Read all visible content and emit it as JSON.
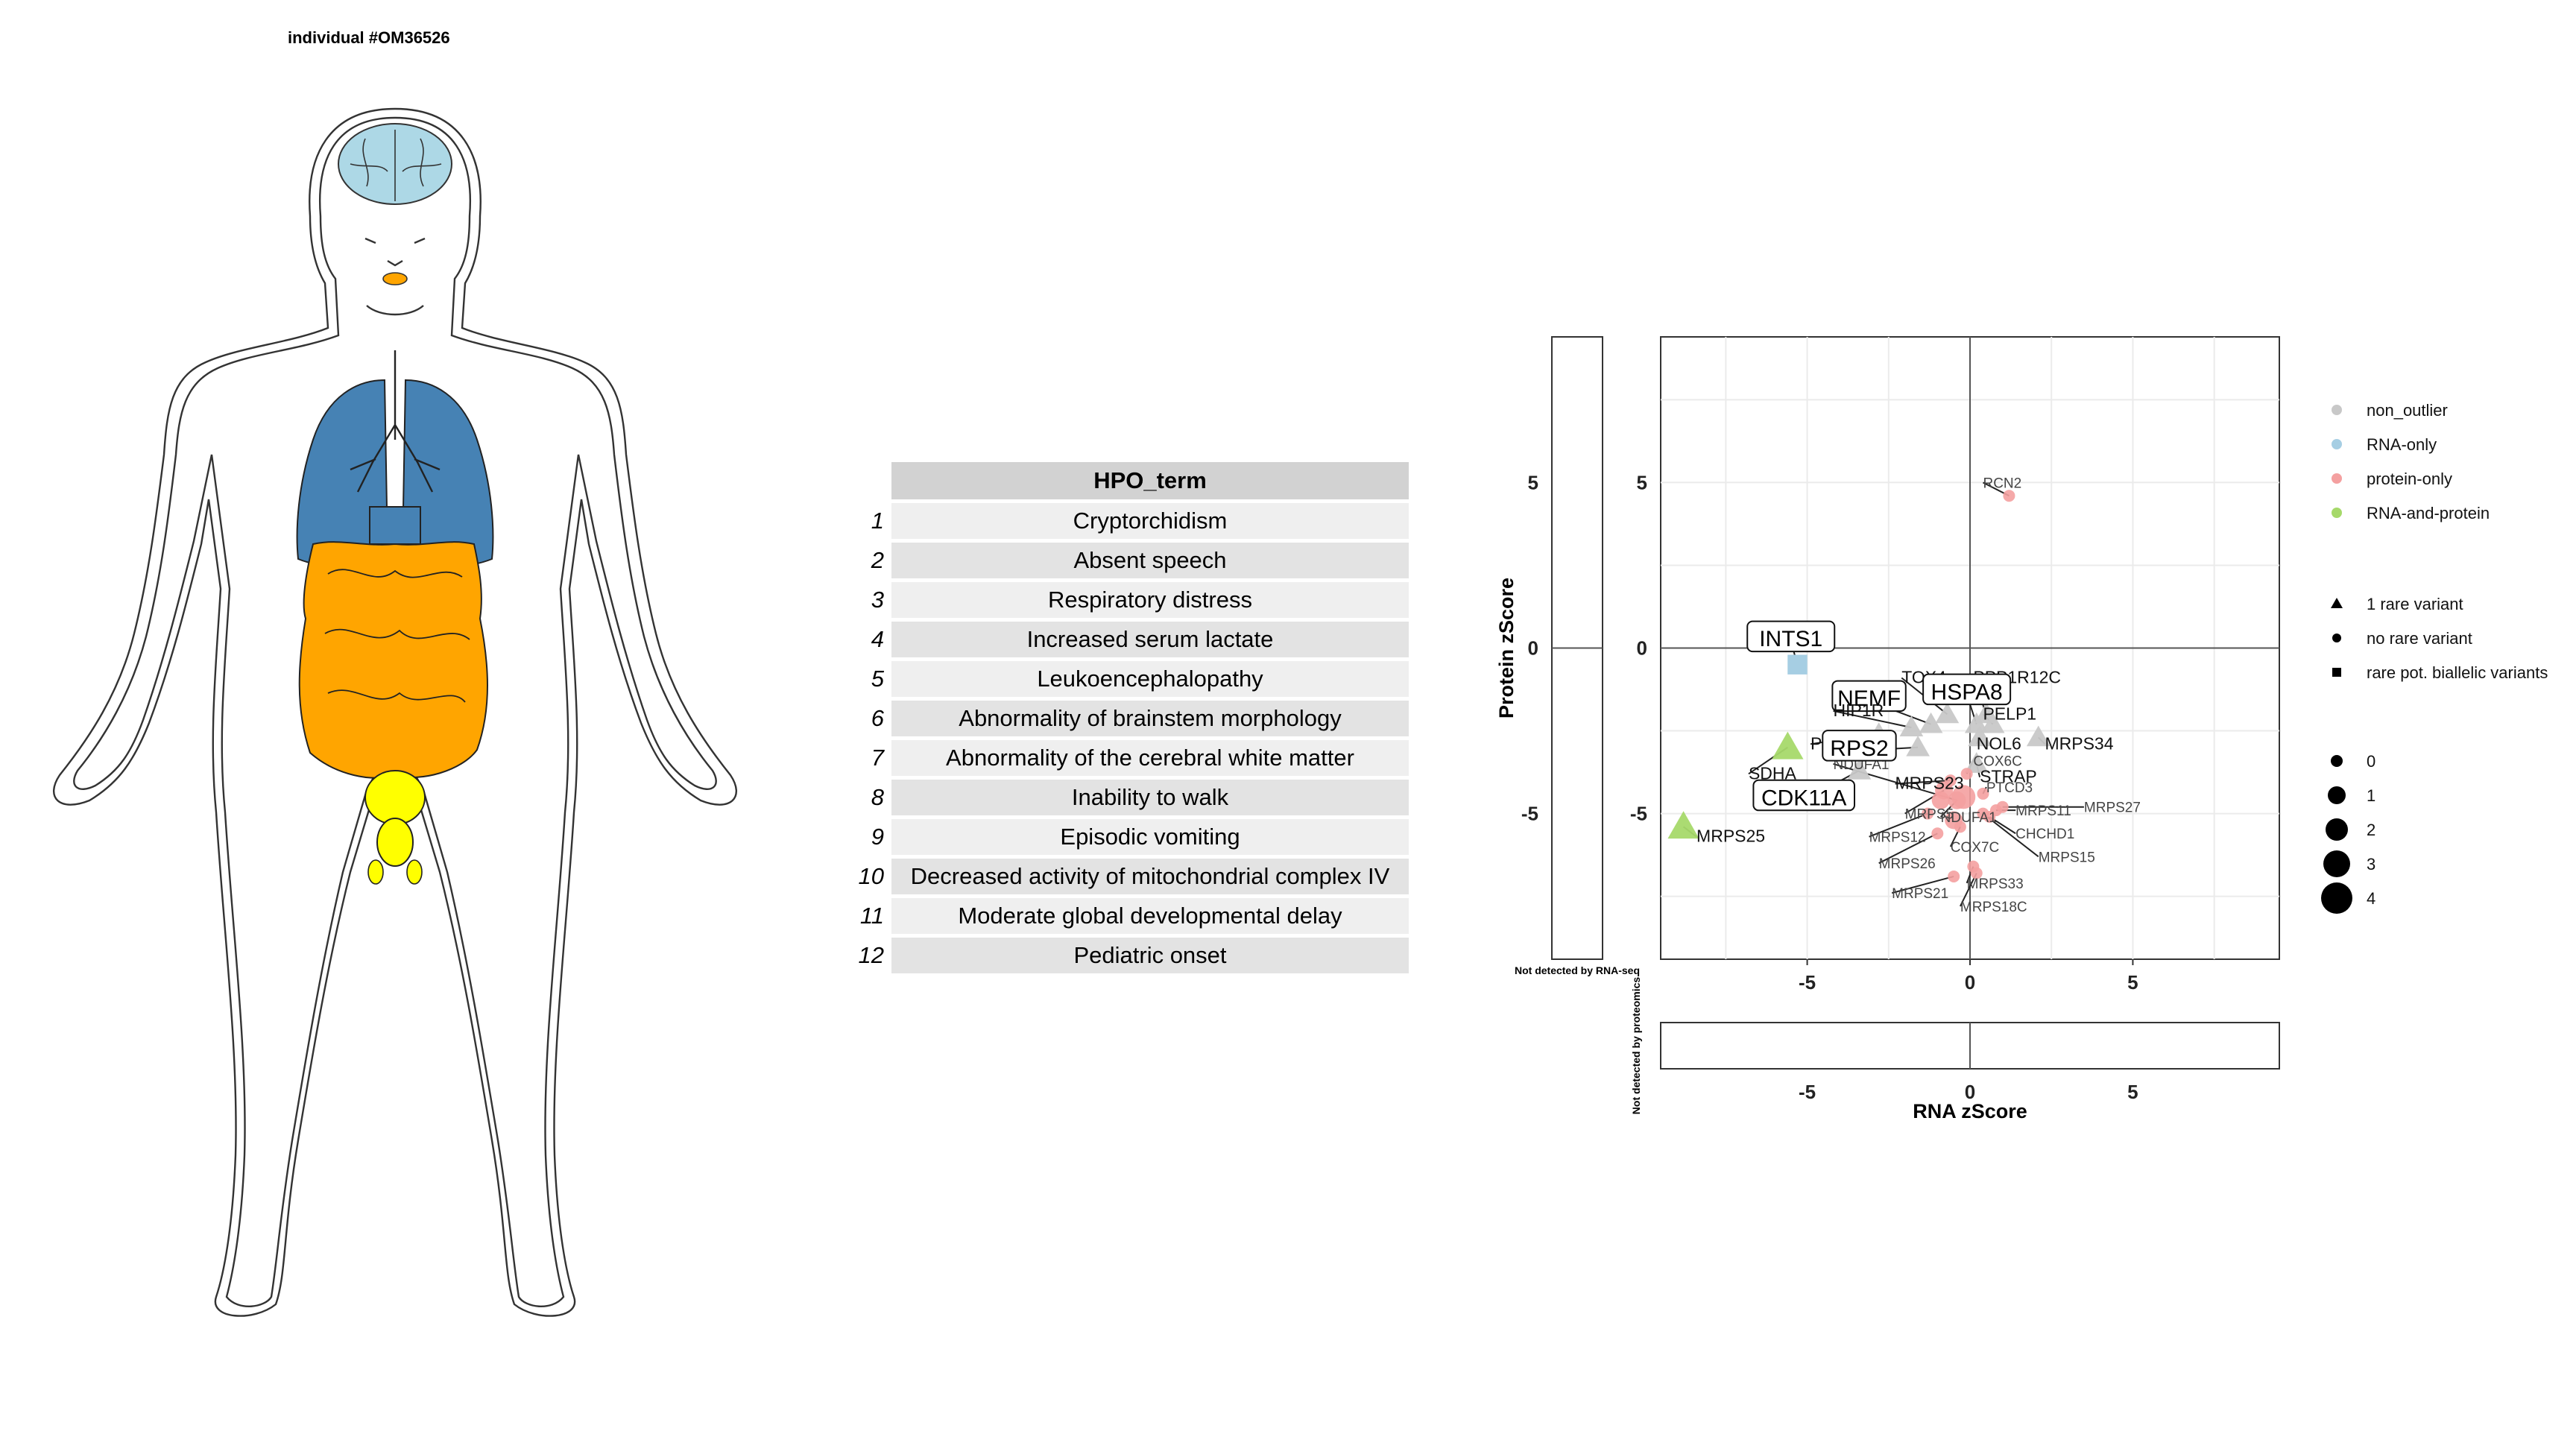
{
  "title": "individual #OM36526",
  "body": {
    "organs": [
      {
        "name": "brain",
        "color": "#add8e6"
      },
      {
        "name": "lungs",
        "color": "#4682b4"
      },
      {
        "name": "intestines",
        "color": "#ffa500"
      },
      {
        "name": "bladder",
        "color": "#ffff00"
      },
      {
        "name": "mouth",
        "color": "#ffa500"
      }
    ]
  },
  "hpo_table": {
    "header": "HPO_term",
    "rows": [
      {
        "idx": "1",
        "term": "Cryptorchidism"
      },
      {
        "idx": "2",
        "term": "Absent speech"
      },
      {
        "idx": "3",
        "term": "Respiratory distress"
      },
      {
        "idx": "4",
        "term": "Increased serum lactate"
      },
      {
        "idx": "5",
        "term": "Leukoencephalopathy"
      },
      {
        "idx": "6",
        "term": "Abnormality of brainstem morphology"
      },
      {
        "idx": "7",
        "term": "Abnormality of the cerebral white matter"
      },
      {
        "idx": "8",
        "term": "Inability to walk"
      },
      {
        "idx": "9",
        "term": "Episodic vomiting"
      },
      {
        "idx": "10",
        "term": "Decreased activity of mitochondrial complex IV"
      },
      {
        "idx": "11",
        "term": "Moderate global developmental delay"
      },
      {
        "idx": "12",
        "term": "Pediatric onset"
      }
    ]
  },
  "chart_data": {
    "type": "scatter",
    "title": "",
    "xlabel": "RNA zScore",
    "ylabel": "Protein zScore",
    "xlim": [
      -9.5,
      9.5
    ],
    "ylim": [
      -9.4,
      9.4
    ],
    "xticks": [
      -5,
      0,
      5
    ],
    "yticks": [
      5,
      0,
      -5
    ],
    "side_label_left": "Not detected by RNA-seq",
    "side_label_bottom": "Not detected by proteomics",
    "colors": {
      "non_outlier": "#c8c8c8",
      "RNA-only": "#a6cee3",
      "protein-only": "#f4a0a0",
      "RNA-and-protein": "#a6d96a"
    },
    "legend": {
      "placement": "right",
      "color_items": [
        "non_outlier",
        "RNA-only",
        "protein-only",
        "RNA-and-protein"
      ],
      "shape_items": [
        {
          "shape": "triangle",
          "label": "1 rare variant"
        },
        {
          "shape": "circle",
          "label": "no rare variant"
        },
        {
          "shape": "square",
          "label": "rare pot. biallelic variants"
        }
      ],
      "size_items": [
        "0",
        "1",
        "2",
        "3",
        "4"
      ]
    },
    "points": [
      {
        "gene": "RCN2",
        "x": 1.2,
        "y": 4.6,
        "cat": "protein-only",
        "shape": "circle",
        "size": 0
      },
      {
        "gene": "INTS1",
        "x": -5.3,
        "y": -0.5,
        "cat": "RNA-only",
        "shape": "square",
        "size": 1,
        "boxed": true
      },
      {
        "gene": "SDHA",
        "x": -5.6,
        "y": -3.0,
        "cat": "RNA-and-protein",
        "shape": "triangle",
        "size": 2
      },
      {
        "gene": "MRPS25",
        "x": -8.8,
        "y": -5.4,
        "cat": "RNA-and-protein",
        "shape": "triangle",
        "size": 2
      },
      {
        "gene": "TOX4",
        "x": -0.7,
        "y": -2.0,
        "cat": "non_outlier",
        "shape": "triangle",
        "size": 1
      },
      {
        "gene": "PPP1R12C",
        "x": 0.5,
        "y": -2.0,
        "cat": "non_outlier",
        "shape": "triangle",
        "size": 1
      },
      {
        "gene": "NEMF",
        "x": -1.2,
        "y": -2.3,
        "cat": "non_outlier",
        "shape": "triangle",
        "size": 1,
        "boxed": true
      },
      {
        "gene": "HSPA8",
        "x": 0.2,
        "y": -2.3,
        "cat": "non_outlier",
        "shape": "triangle",
        "size": 1,
        "boxed": true
      },
      {
        "gene": "HIP1R",
        "x": -1.8,
        "y": -2.4,
        "cat": "non_outlier",
        "shape": "triangle",
        "size": 1
      },
      {
        "gene": "PELP1",
        "x": 0.7,
        "y": -2.3,
        "cat": "non_outlier",
        "shape": "triangle",
        "size": 1
      },
      {
        "gene": "MRPS34",
        "x": 2.1,
        "y": -2.7,
        "cat": "non_outlier",
        "shape": "triangle",
        "size": 1
      },
      {
        "gene": "NOL6",
        "x": 0.3,
        "y": -2.7,
        "cat": "non_outlier",
        "shape": "triangle",
        "size": 1
      },
      {
        "gene": "PRTFDC1",
        "x": -2.8,
        "y": -2.6,
        "cat": "non_outlier",
        "shape": "triangle",
        "size": 1
      },
      {
        "gene": "RPS2",
        "x": -1.6,
        "y": -3.0,
        "cat": "non_outlier",
        "shape": "triangle",
        "size": 1,
        "boxed": true
      },
      {
        "gene": "STRAP",
        "x": 0.2,
        "y": -3.5,
        "cat": "non_outlier",
        "shape": "triangle",
        "size": 1
      },
      {
        "gene": "CDK11A",
        "x": -3.4,
        "y": -3.7,
        "cat": "non_outlier",
        "shape": "triangle",
        "size": 1,
        "boxed": true
      },
      {
        "gene": "MRPS23",
        "x": -0.6,
        "y": -4.0,
        "cat": "protein-only",
        "shape": "circle",
        "size": 0
      },
      {
        "gene": "MRPS11",
        "x": 0.8,
        "y": -4.9,
        "cat": "protein-only",
        "shape": "circle",
        "size": 0
      },
      {
        "gene": "MRPS27",
        "x": 1.0,
        "y": -4.8,
        "cat": "protein-only",
        "shape": "circle",
        "size": 0
      },
      {
        "gene": "CHCHD1",
        "x": 0.6,
        "y": -5.1,
        "cat": "protein-only",
        "shape": "circle",
        "size": 0
      },
      {
        "gene": "MRPS15",
        "x": 0.4,
        "y": -5.0,
        "cat": "protein-only",
        "shape": "circle",
        "size": 0
      },
      {
        "gene": "MRPS12",
        "x": -1.3,
        "y": -5.0,
        "cat": "protein-only",
        "shape": "circle",
        "size": 0
      },
      {
        "gene": "MRPS26",
        "x": -1.0,
        "y": -5.6,
        "cat": "protein-only",
        "shape": "circle",
        "size": 0
      },
      {
        "gene": "MRPS21",
        "x": -0.5,
        "y": -6.9,
        "cat": "protein-only",
        "shape": "circle",
        "size": 0
      },
      {
        "gene": "COX7C",
        "x": -0.3,
        "y": -5.4,
        "cat": "protein-only",
        "shape": "circle",
        "size": 0
      },
      {
        "gene": "MRPS33",
        "x": 0.1,
        "y": -6.6,
        "cat": "protein-only",
        "shape": "circle",
        "size": 0
      },
      {
        "gene": "MRPS18C",
        "x": 0.2,
        "y": -6.8,
        "cat": "protein-only",
        "shape": "circle",
        "size": 0
      },
      {
        "gene": "NDUFA1",
        "x": -0.4,
        "y": -4.6,
        "cat": "protein-only",
        "shape": "circle",
        "size": 1
      },
      {
        "gene": "PTCD3",
        "x": 0.4,
        "y": -4.4,
        "cat": "protein-only",
        "shape": "circle",
        "size": 0
      },
      {
        "gene": "COX6C",
        "x": -0.1,
        "y": -3.8,
        "cat": "protein-only",
        "shape": "circle",
        "size": 0
      },
      {
        "gene": "MRPS5",
        "x": -0.8,
        "y": -4.3,
        "cat": "protein-only",
        "shape": "circle",
        "size": 1
      },
      {
        "gene": "",
        "x": -0.2,
        "y": -4.5,
        "cat": "protein-only",
        "shape": "circle",
        "size": 2
      },
      {
        "gene": "",
        "x": -0.5,
        "y": -5.2,
        "cat": "protein-only",
        "shape": "circle",
        "size": 1
      },
      {
        "gene": "",
        "x": -0.9,
        "y": -4.6,
        "cat": "protein-only",
        "shape": "circle",
        "size": 1
      }
    ],
    "labels": [
      {
        "text": "RCN2",
        "gene": "RCN2",
        "x": 0.4,
        "y": 5.0,
        "size": "small"
      },
      {
        "text": "INTS1",
        "gene": "INTS1",
        "x": -5.5,
        "y": 0.2,
        "size": "box"
      },
      {
        "text": "TOX4",
        "gene": "TOX4",
        "x": -2.1,
        "y": -0.9,
        "size": "med"
      },
      {
        "text": "PPP1R12C",
        "gene": "PPP1R12C",
        "x": 0.1,
        "y": -0.9,
        "size": "med"
      },
      {
        "text": "NEMF",
        "gene": "NEMF",
        "x": -3.1,
        "y": -1.6,
        "size": "box"
      },
      {
        "text": "HSPA8",
        "gene": "HSPA8",
        "x": -0.1,
        "y": -1.4,
        "size": "box"
      },
      {
        "text": "HIP1R",
        "gene": "HIP1R",
        "x": -4.2,
        "y": -1.9,
        "size": "med"
      },
      {
        "text": "PELP1",
        "gene": "PELP1",
        "x": 0.4,
        "y": -2.0,
        "size": "med"
      },
      {
        "text": "MRPS34",
        "gene": "MRPS34",
        "x": 2.3,
        "y": -2.9,
        "size": "med"
      },
      {
        "text": "NOL6",
        "gene": "NOL6",
        "x": 0.2,
        "y": -2.9,
        "size": "med"
      },
      {
        "text": "PRTFDC1",
        "gene": "PRTFDC1",
        "x": -4.9,
        "y": -2.9,
        "size": "med"
      },
      {
        "text": "NDUFA1",
        "gene": "NDUFA1",
        "x": -4.2,
        "y": -3.5,
        "size": "small"
      },
      {
        "text": "RPS2",
        "gene": "RPS2",
        "x": -3.4,
        "y": -3.1,
        "size": "box"
      },
      {
        "text": "CDK11A",
        "gene": "CDK11A",
        "x": -5.1,
        "y": -4.6,
        "size": "box"
      },
      {
        "text": "SDHA",
        "gene": "SDHA",
        "x": -6.8,
        "y": -3.8,
        "size": "med"
      },
      {
        "text": "MRPS25",
        "gene": "MRPS25",
        "x": -8.4,
        "y": -5.7,
        "size": "med"
      },
      {
        "text": "STRAP",
        "gene": "STRAP",
        "x": 0.3,
        "y": -3.9,
        "size": "med"
      },
      {
        "text": "COX6C",
        "gene": "COX6C",
        "x": 0.1,
        "y": -3.4,
        "size": "small"
      },
      {
        "text": "PTCD3",
        "gene": "PTCD3",
        "x": 0.5,
        "y": -4.2,
        "size": "small"
      },
      {
        "text": "MRPS23",
        "gene": "MRPS23",
        "x": -2.3,
        "y": -4.1,
        "size": "med"
      },
      {
        "text": "MRPS5",
        "gene": "MRPS5",
        "x": -2.0,
        "y": -5.0,
        "size": "small"
      },
      {
        "text": "NDUFA1",
        "gene": "NDUFA1",
        "x": -0.9,
        "y": -5.1,
        "size": "small"
      },
      {
        "text": "MRPS11",
        "gene": "MRPS11",
        "x": 1.4,
        "y": -4.9,
        "size": "small"
      },
      {
        "text": "MRPS27",
        "gene": "MRPS27",
        "x": 3.5,
        "y": -4.8,
        "size": "small"
      },
      {
        "text": "CHCHD1",
        "gene": "CHCHD1",
        "x": 1.4,
        "y": -5.6,
        "size": "small"
      },
      {
        "text": "MRPS15",
        "gene": "MRPS15",
        "x": 2.1,
        "y": -6.3,
        "size": "small"
      },
      {
        "text": "MRPS12",
        "gene": "MRPS12",
        "x": -3.1,
        "y": -5.7,
        "size": "small"
      },
      {
        "text": "COX7C",
        "gene": "COX7C",
        "x": -0.6,
        "y": -6.0,
        "size": "small"
      },
      {
        "text": "MRPS26",
        "gene": "MRPS26",
        "x": -2.8,
        "y": -6.5,
        "size": "small"
      },
      {
        "text": "MRPS33",
        "gene": "MRPS33",
        "x": -0.1,
        "y": -7.1,
        "size": "small"
      },
      {
        "text": "MRPS21",
        "gene": "MRPS21",
        "x": -2.4,
        "y": -7.4,
        "size": "small"
      },
      {
        "text": "MRPS18C",
        "gene": "MRPS18C",
        "x": -0.3,
        "y": -7.8,
        "size": "small"
      }
    ]
  }
}
